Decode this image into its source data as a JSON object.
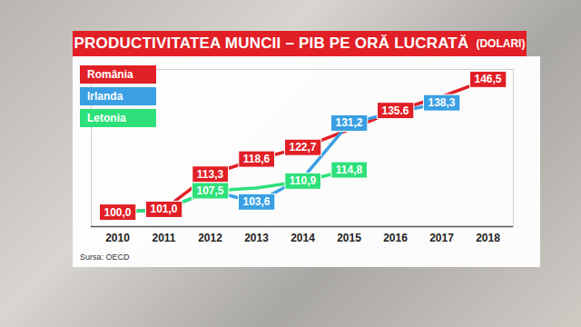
{
  "chart_data": {
    "type": "line",
    "title": "PRODUCTIVITATEA MUNCII – PIB PE ORĂ LUCRATĂ",
    "subtitle": "(DOLARI)",
    "source": "Sursa: OECD",
    "x": [
      2010,
      2011,
      2012,
      2013,
      2014,
      2015,
      2016,
      2017,
      2018
    ],
    "series": [
      {
        "name": "România",
        "color": "#e11f26",
        "values": [
          100.0,
          101.0,
          113.3,
          118.6,
          122.7,
          129.0,
          135.6,
          140.5,
          146.5
        ],
        "value_labels": [
          "100,0",
          "101,0",
          "113,3",
          "118,6",
          "122,7",
          null,
          "135.6",
          null,
          "146,5"
        ]
      },
      {
        "name": "Irlanda",
        "color": "#3a9fe3",
        "values": [
          100.0,
          101.0,
          107.5,
          103.6,
          112.0,
          131.2,
          135.0,
          138.3,
          null
        ],
        "value_labels": [
          null,
          null,
          null,
          "103,6",
          null,
          "131,2",
          null,
          "138,3",
          null
        ]
      },
      {
        "name": "Letonia",
        "color": "#2ee07a",
        "values": [
          100.0,
          101.0,
          107.5,
          108.5,
          110.9,
          114.8,
          null,
          null,
          null
        ],
        "value_labels": [
          null,
          null,
          "107,5",
          null,
          "110,9",
          "114,8",
          null,
          null,
          null
        ]
      }
    ],
    "ylim": [
      95,
      150
    ],
    "yticks": [],
    "tick_labels": "x",
    "data_labels": true,
    "legend": "top-left",
    "grid": false
  }
}
